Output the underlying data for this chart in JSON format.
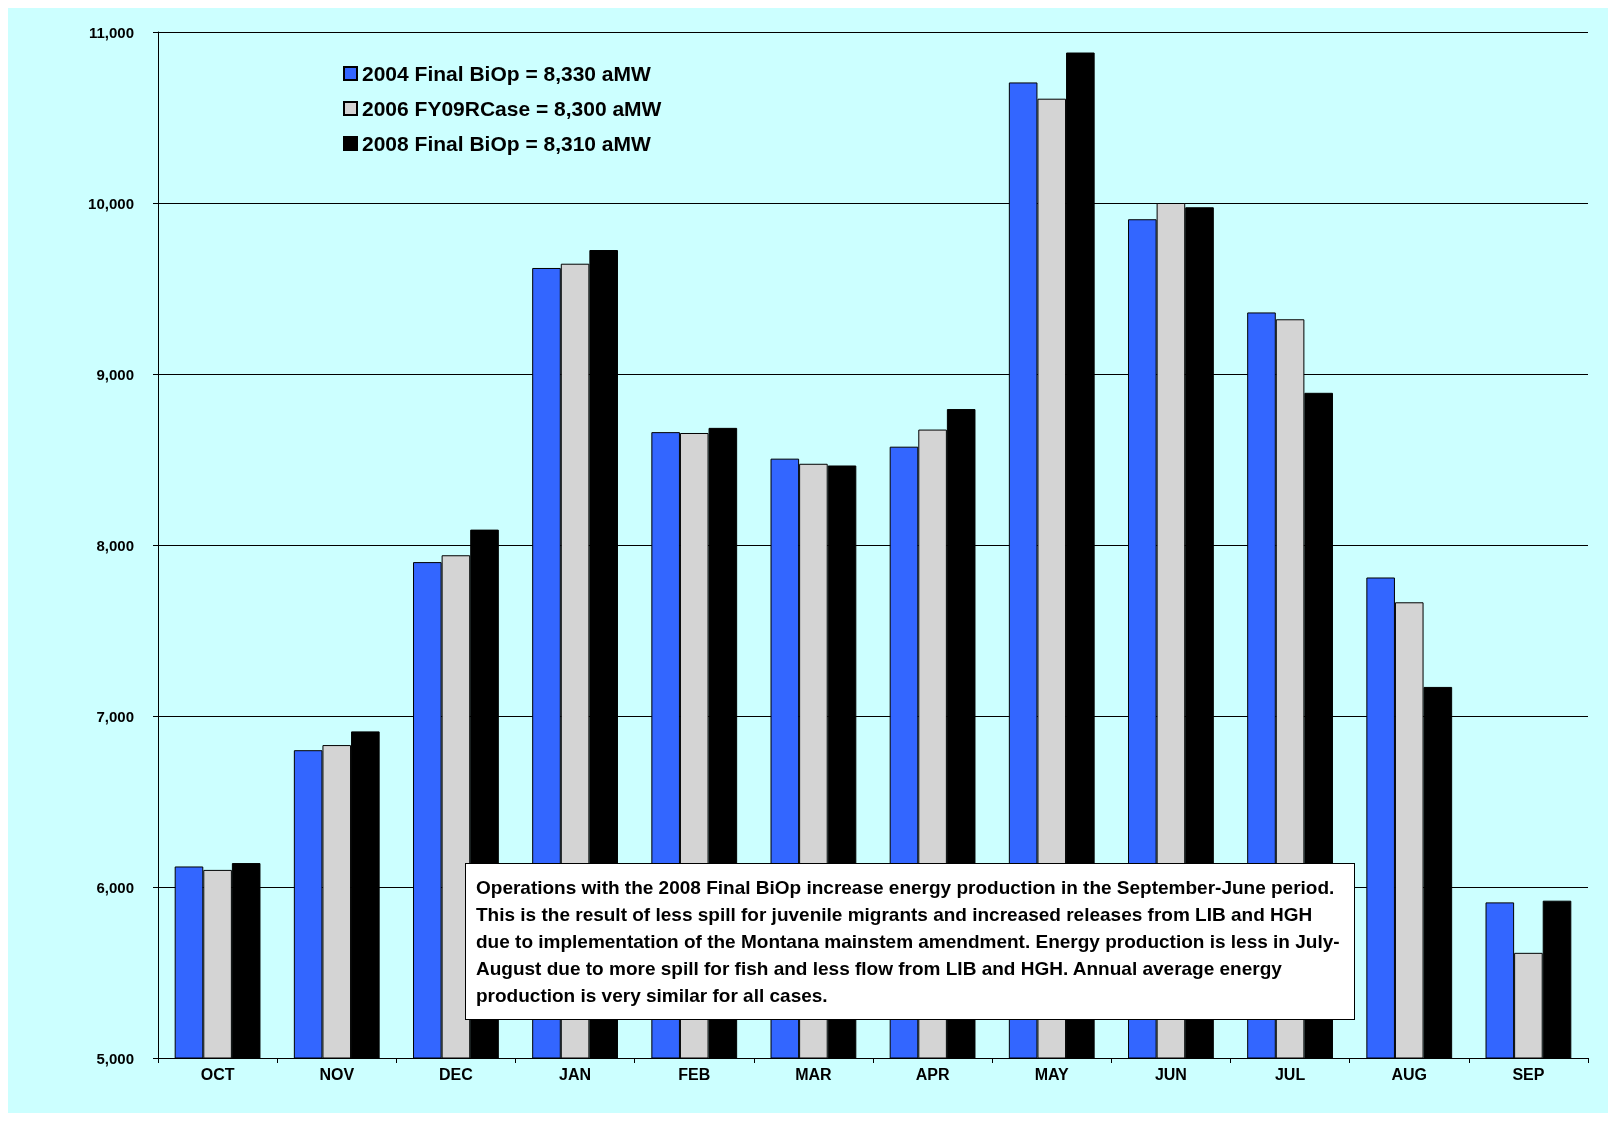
{
  "chart_data": {
    "type": "bar",
    "categories": [
      "OCT",
      "NOV",
      "DEC",
      "JAN",
      "FEB",
      "MAR",
      "APR",
      "MAY",
      "JUN",
      "JUL",
      "AUG",
      "SEP"
    ],
    "series": [
      {
        "name": "2004 Final BiOp = 8,330 aMW",
        "color": "#3366ff",
        "values": [
          6120,
          6800,
          7900,
          9620,
          8660,
          8505,
          8575,
          10705,
          9905,
          9360,
          7810,
          5910
        ]
      },
      {
        "name": "2006 FY09RCase = 8,300 aMW",
        "color": "#d4d4d4",
        "values": [
          6100,
          6830,
          7940,
          9645,
          8655,
          8475,
          8675,
          10610,
          10000,
          9320,
          7665,
          5615
        ]
      },
      {
        "name": "2008 Final BiOp = 8,310 aMW",
        "color": "#000000",
        "values": [
          6140,
          6910,
          8090,
          9725,
          8685,
          8465,
          8795,
          10880,
          9975,
          8890,
          7170,
          5920
        ]
      }
    ],
    "ylim": [
      5000,
      11000
    ],
    "yticks": [
      {
        "value": 5000,
        "label": "5,000"
      },
      {
        "value": 6000,
        "label": "6,000"
      },
      {
        "value": 7000,
        "label": "7,000"
      },
      {
        "value": 8000,
        "label": "8,000"
      },
      {
        "value": 9000,
        "label": "9,000"
      },
      {
        "value": 10000,
        "label": "10,000"
      },
      {
        "value": 11000,
        "label": "11,000"
      }
    ],
    "grid": "y",
    "legend": "top left",
    "annotations": [
      "Operations with the 2008 Final BiOp increase energy production in the September-June period.  This is the result of less spill for juvenile migrants and increased releases from LIB and HGH due to implementation of the Montana mainstem amendment.  Energy production is less in July-August due to more spill for fish and less flow from LIB and HGH.  Annual average energy production is very similar for all cases."
    ]
  }
}
